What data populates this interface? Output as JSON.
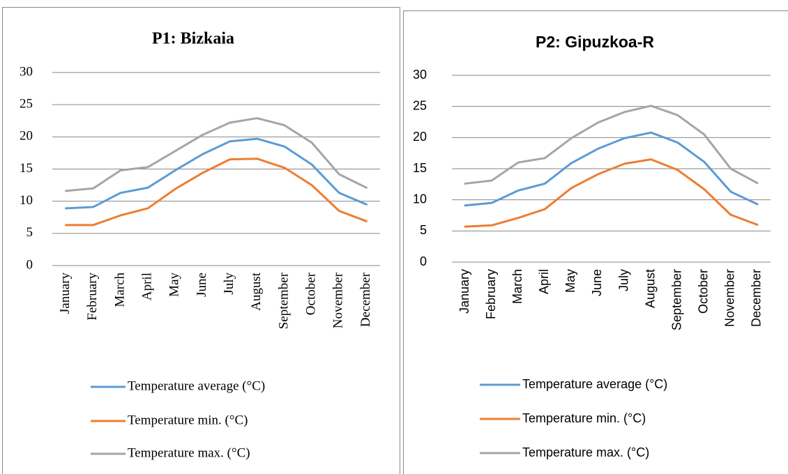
{
  "chart_data": [
    {
      "type": "line",
      "title": "P1: Bizkaia",
      "categories": [
        "January",
        "February",
        "March",
        "April",
        "May",
        "June",
        "July",
        "August",
        "September",
        "October",
        "November",
        "December"
      ],
      "ylim": [
        0,
        30
      ],
      "yticks": [
        0,
        5,
        10,
        15,
        20,
        25,
        30
      ],
      "grid": true,
      "legend": "bottom",
      "series": [
        {
          "name": "Temperature average (°C)",
          "color": "#5b9bd5",
          "values": [
            8.9,
            9.1,
            11.3,
            12.1,
            14.8,
            17.3,
            19.3,
            19.7,
            18.5,
            15.7,
            11.3,
            9.5
          ]
        },
        {
          "name": "Temperature min. (°C)",
          "color": "#ed7d31",
          "values": [
            6.3,
            6.3,
            7.8,
            8.9,
            11.9,
            14.4,
            16.5,
            16.6,
            15.2,
            12.5,
            8.5,
            6.9
          ]
        },
        {
          "name": "Temperature max. (°C)",
          "color": "#a5a5a5",
          "values": [
            11.6,
            12.0,
            14.8,
            15.3,
            17.8,
            20.3,
            22.2,
            22.9,
            21.8,
            19.1,
            14.2,
            12.1
          ]
        }
      ]
    },
    {
      "type": "line",
      "title": "P2: Gipuzkoa-R",
      "categories": [
        "January",
        "February",
        "March",
        "April",
        "May",
        "June",
        "July",
        "August",
        "September",
        "October",
        "November",
        "December"
      ],
      "ylim": [
        0,
        30
      ],
      "yticks": [
        0,
        5,
        10,
        15,
        20,
        25,
        30
      ],
      "grid": true,
      "legend": "bottom",
      "series": [
        {
          "name": "Temperature average (°C)",
          "color": "#5b9bd5",
          "values": [
            9.1,
            9.5,
            11.5,
            12.6,
            15.9,
            18.2,
            19.9,
            20.8,
            19.2,
            16.1,
            11.3,
            9.3
          ]
        },
        {
          "name": "Temperature min. (°C)",
          "color": "#ed7d31",
          "values": [
            5.7,
            5.9,
            7.1,
            8.5,
            11.9,
            14.1,
            15.8,
            16.5,
            14.8,
            11.7,
            7.6,
            6.0
          ]
        },
        {
          "name": "Temperature max. (°C)",
          "color": "#a5a5a5",
          "values": [
            12.6,
            13.1,
            16.0,
            16.7,
            19.9,
            22.4,
            24.1,
            25.1,
            23.6,
            20.5,
            15.0,
            12.7
          ]
        }
      ]
    }
  ]
}
